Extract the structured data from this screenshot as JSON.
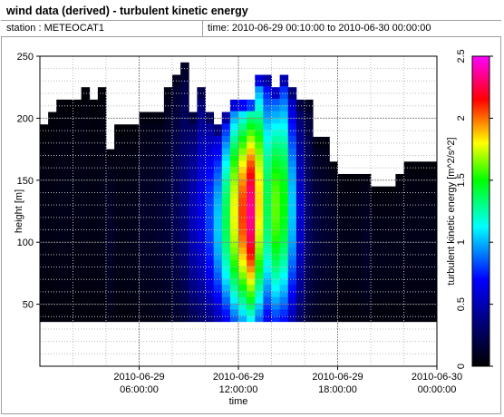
{
  "header": {
    "title": "wind data (derived) - turbulent kinetic energy",
    "station": "station : METEOCAT1",
    "time_range": "time: 2010-06-29 00:10:00 to 2010-06-30 00:00:00"
  },
  "chart_data": {
    "type": "heatmap",
    "title": "wind data (derived) - turbulent kinetic energy",
    "xlabel": "time",
    "ylabel": "height [m]",
    "colorbar_label": "turbulent kinetic energy [m^2/s^2]",
    "x_range_hours": [
      0,
      24
    ],
    "y_range": [
      0,
      250
    ],
    "z_range": [
      0,
      2.5
    ],
    "x_ticks": [
      {
        "hour": 6,
        "line1": "2010-06-29",
        "line2": "06:00:00"
      },
      {
        "hour": 12,
        "line1": "2010-06-29",
        "line2": "12:00:00"
      },
      {
        "hour": 18,
        "line1": "2010-06-29",
        "line2": "18:00:00"
      },
      {
        "hour": 24,
        "line1": "2010-06-30",
        "line2": "00:00:00"
      }
    ],
    "y_ticks": [
      "50",
      "100",
      "150",
      "200",
      "250"
    ],
    "colorbar_ticks": [
      "0",
      "0.5",
      "1",
      "1.5",
      "2",
      "2.5"
    ],
    "grid": true,
    "colormap": [
      "#000000",
      "#00007a",
      "#0000ff",
      "#00ffff",
      "#00ff00",
      "#ffff00",
      "#ff0000",
      "#ff00ff"
    ],
    "height_range_m": [
      36,
      250
    ],
    "columns": [
      {
        "t": 0.0,
        "top": 195,
        "tke": 0.05
      },
      {
        "t": 0.5,
        "top": 205,
        "tke": 0.05
      },
      {
        "t": 1.0,
        "top": 215,
        "tke": 0.06
      },
      {
        "t": 1.5,
        "top": 215,
        "tke": 0.06
      },
      {
        "t": 2.0,
        "top": 215,
        "tke": 0.05
      },
      {
        "t": 2.5,
        "top": 225,
        "tke": 0.06
      },
      {
        "t": 3.0,
        "top": 215,
        "tke": 0.05
      },
      {
        "t": 3.5,
        "top": 225,
        "tke": 0.06
      },
      {
        "t": 4.0,
        "top": 175,
        "tke": 0.1
      },
      {
        "t": 4.5,
        "top": 195,
        "tke": 0.06
      },
      {
        "t": 5.0,
        "top": 195,
        "tke": 0.06
      },
      {
        "t": 5.5,
        "top": 195,
        "tke": 0.07
      },
      {
        "t": 6.0,
        "top": 205,
        "tke": 0.1
      },
      {
        "t": 6.5,
        "top": 205,
        "tke": 0.1
      },
      {
        "t": 7.0,
        "top": 205,
        "tke": 0.12
      },
      {
        "t": 7.5,
        "top": 225,
        "tke": 0.15
      },
      {
        "t": 8.0,
        "top": 235,
        "tke": 0.22
      },
      {
        "t": 8.5,
        "top": 245,
        "tke": 0.3
      },
      {
        "t": 9.0,
        "top": 205,
        "tke": 0.45
      },
      {
        "t": 9.5,
        "top": 225,
        "tke": 0.55
      },
      {
        "t": 10.0,
        "top": 205,
        "tke": 0.7
      },
      {
        "t": 10.5,
        "top": 195,
        "tke": 0.9
      },
      {
        "t": 11.0,
        "top": 205,
        "tke": 1.2
      },
      {
        "t": 11.5,
        "top": 215,
        "tke": 1.55
      },
      {
        "t": 12.0,
        "top": 215,
        "tke": 1.8
      },
      {
        "t": 12.5,
        "top": 215,
        "tke": 2.05
      },
      {
        "t": 13.0,
        "top": 235,
        "tke": 1.6
      },
      {
        "t": 13.5,
        "top": 235,
        "tke": 1.2
      },
      {
        "t": 14.0,
        "top": 225,
        "tke": 1.4
      },
      {
        "t": 14.5,
        "top": 235,
        "tke": 1.3
      },
      {
        "t": 15.0,
        "top": 225,
        "tke": 0.9
      },
      {
        "t": 15.5,
        "top": 215,
        "tke": 0.5
      },
      {
        "t": 16.0,
        "top": 215,
        "tke": 0.25
      },
      {
        "t": 16.5,
        "top": 185,
        "tke": 0.15
      },
      {
        "t": 17.0,
        "top": 185,
        "tke": 0.12
      },
      {
        "t": 17.5,
        "top": 165,
        "tke": 0.1
      },
      {
        "t": 18.0,
        "top": 155,
        "tke": 0.06
      },
      {
        "t": 18.5,
        "top": 155,
        "tke": 0.06
      },
      {
        "t": 19.0,
        "top": 155,
        "tke": 0.07
      },
      {
        "t": 19.5,
        "top": 155,
        "tke": 0.1
      },
      {
        "t": 20.0,
        "top": 145,
        "tke": 0.06
      },
      {
        "t": 20.5,
        "top": 145,
        "tke": 0.06
      },
      {
        "t": 21.0,
        "top": 145,
        "tke": 0.06
      },
      {
        "t": 21.5,
        "top": 155,
        "tke": 0.06
      },
      {
        "t": 22.0,
        "top": 165,
        "tke": 0.06
      },
      {
        "t": 22.5,
        "top": 165,
        "tke": 0.06
      },
      {
        "t": 23.0,
        "top": 165,
        "tke": 0.06
      },
      {
        "t": 23.5,
        "top": 165,
        "tke": 0.06
      }
    ]
  }
}
